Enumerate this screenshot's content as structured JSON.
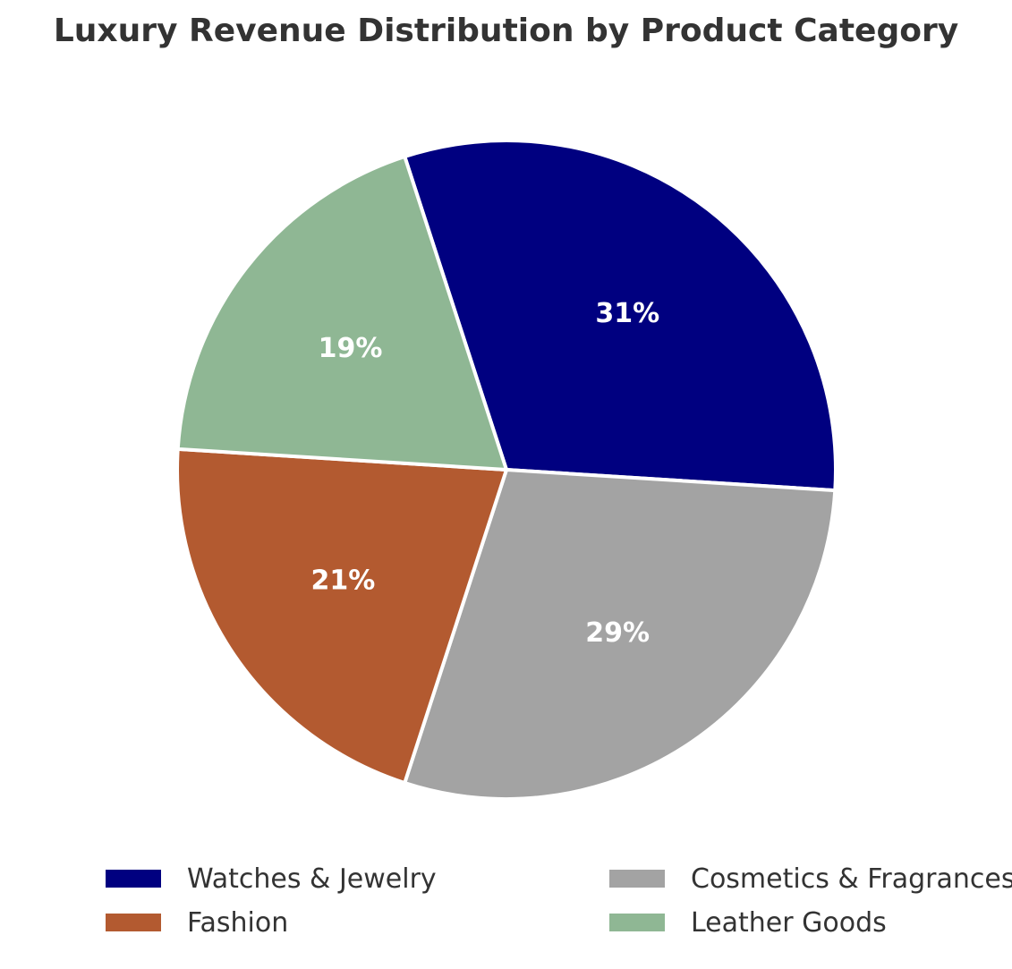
{
  "chart_data": {
    "type": "pie",
    "title": "Luxury Revenue Distribution by Product Category",
    "start_angle_deg": 108,
    "direction": "clockwise",
    "slices": [
      {
        "label": "Watches & Jewelry",
        "value": 31,
        "display": "31%",
        "color": "#000080"
      },
      {
        "label": "Cosmetics & Fragrances",
        "value": 29,
        "display": "29%",
        "color": "#a3a3a3"
      },
      {
        "label": "Fashion",
        "value": 21,
        "display": "21%",
        "color": "#b35a30"
      },
      {
        "label": "Leather Goods",
        "value": 19,
        "display": "19%",
        "color": "#8fb794"
      }
    ],
    "legend": {
      "placement": "bottom",
      "columns": 2
    }
  }
}
